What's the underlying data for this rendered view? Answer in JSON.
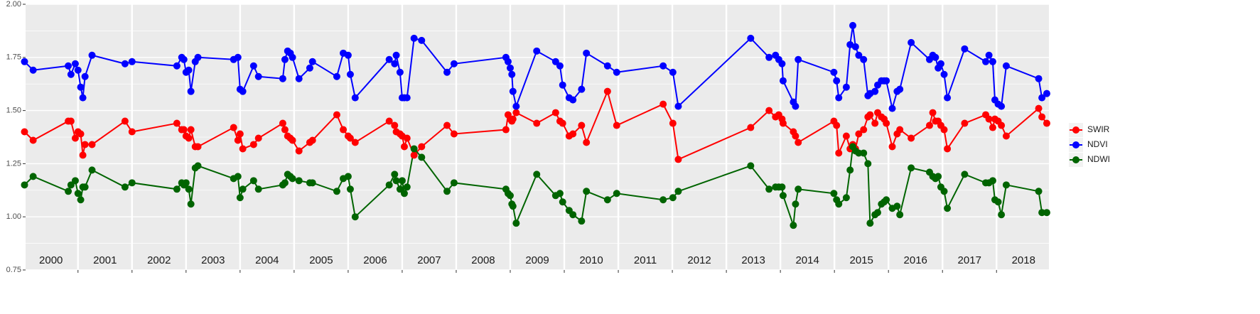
{
  "chart_data": {
    "type": "line",
    "x": [
      2000.01,
      2000.17,
      2000.82,
      2000.87,
      2000.95,
      2001.0,
      2001.05,
      2001.09,
      2001.13,
      2001.26,
      2001.87,
      2002.0,
      2002.83,
      2002.92,
      2002.96,
      2003.0,
      2003.05,
      2003.09,
      2003.17,
      2003.22,
      2003.88,
      2003.96,
      2004.0,
      2004.05,
      2004.25,
      2004.34,
      2004.79,
      2004.83,
      2004.88,
      2004.93,
      2004.97,
      2005.09,
      2005.29,
      2005.34,
      2005.79,
      2005.91,
      2006.0,
      2006.04,
      2006.13,
      2006.76,
      2006.86,
      2006.89,
      2006.96,
      2007.0,
      2007.04,
      2007.09,
      2007.22,
      2007.36,
      2007.83,
      2007.96,
      2008.92,
      2008.96,
      2009.0,
      2009.03,
      2009.05,
      2009.11,
      2009.49,
      2009.84,
      2009.92,
      2009.97,
      2010.09,
      2010.16,
      2010.32,
      2010.41,
      2010.8,
      2010.97,
      2011.83,
      2012.01,
      2012.11,
      2013.45,
      2013.79,
      2013.91,
      2013.97,
      2014.03,
      2014.05,
      2014.24,
      2014.28,
      2014.33,
      2014.99,
      2015.04,
      2015.08,
      2015.22,
      2015.29,
      2015.34,
      2015.39,
      2015.45,
      2015.54,
      2015.62,
      2015.66,
      2015.75,
      2015.8,
      2015.87,
      2015.92,
      2015.96,
      2016.07,
      2016.16,
      2016.21,
      2016.42,
      2016.76,
      2016.82,
      2016.87,
      2016.92,
      2016.97,
      2017.03,
      2017.09,
      2017.41,
      2017.8,
      2017.86,
      2017.93,
      2017.97,
      2018.03,
      2018.09,
      2018.18,
      2018.78,
      2018.84,
      2018.93
    ],
    "series": [
      {
        "name": "SWIR",
        "color": "#ff0000",
        "values": [
          1.4,
          1.36,
          1.45,
          1.45,
          1.37,
          1.4,
          1.39,
          1.29,
          1.34,
          1.34,
          1.45,
          1.4,
          1.44,
          1.41,
          1.41,
          1.38,
          1.37,
          1.41,
          1.33,
          1.33,
          1.42,
          1.36,
          1.39,
          1.32,
          1.34,
          1.37,
          1.44,
          1.41,
          1.38,
          1.37,
          1.36,
          1.31,
          1.35,
          1.36,
          1.48,
          1.41,
          1.38,
          1.37,
          1.35,
          1.45,
          1.43,
          1.4,
          1.39,
          1.38,
          1.33,
          1.37,
          1.29,
          1.33,
          1.43,
          1.39,
          1.41,
          1.48,
          1.46,
          1.45,
          1.46,
          1.49,
          1.44,
          1.49,
          1.45,
          1.44,
          1.38,
          1.39,
          1.43,
          1.35,
          1.59,
          1.43,
          1.53,
          1.44,
          1.27,
          1.42,
          1.5,
          1.47,
          1.48,
          1.46,
          1.44,
          1.4,
          1.38,
          1.35,
          1.45,
          1.43,
          1.3,
          1.38,
          1.32,
          1.34,
          1.32,
          1.39,
          1.41,
          1.47,
          1.48,
          1.44,
          1.49,
          1.47,
          1.46,
          1.44,
          1.33,
          1.39,
          1.41,
          1.37,
          1.43,
          1.49,
          1.45,
          1.45,
          1.43,
          1.41,
          1.32,
          1.44,
          1.48,
          1.46,
          1.42,
          1.46,
          1.45,
          1.43,
          1.38,
          1.51,
          1.47,
          1.44
        ]
      },
      {
        "name": "NDVI",
        "color": "#0000ff",
        "values": [
          1.73,
          1.69,
          1.71,
          1.67,
          1.72,
          1.69,
          1.61,
          1.56,
          1.66,
          1.76,
          1.72,
          1.73,
          1.71,
          1.75,
          1.74,
          1.68,
          1.69,
          1.59,
          1.73,
          1.75,
          1.74,
          1.75,
          1.6,
          1.59,
          1.71,
          1.66,
          1.65,
          1.74,
          1.78,
          1.77,
          1.75,
          1.65,
          1.7,
          1.73,
          1.66,
          1.77,
          1.76,
          1.67,
          1.56,
          1.74,
          1.72,
          1.76,
          1.68,
          1.56,
          1.56,
          1.56,
          1.84,
          1.83,
          1.68,
          1.72,
          1.75,
          1.73,
          1.7,
          1.67,
          1.59,
          1.52,
          1.78,
          1.73,
          1.71,
          1.62,
          1.56,
          1.55,
          1.6,
          1.77,
          1.71,
          1.68,
          1.71,
          1.68,
          1.52,
          1.84,
          1.75,
          1.76,
          1.74,
          1.72,
          1.64,
          1.54,
          1.52,
          1.74,
          1.68,
          1.64,
          1.56,
          1.61,
          1.81,
          1.9,
          1.8,
          1.76,
          1.74,
          1.57,
          1.58,
          1.59,
          1.62,
          1.64,
          1.64,
          1.64,
          1.51,
          1.59,
          1.6,
          1.82,
          1.74,
          1.76,
          1.75,
          1.7,
          1.72,
          1.67,
          1.56,
          1.79,
          1.73,
          1.76,
          1.73,
          1.55,
          1.53,
          1.52,
          1.71,
          1.65,
          1.56,
          1.58
        ]
      },
      {
        "name": "NDWI",
        "color": "#006400",
        "values": [
          1.15,
          1.19,
          1.12,
          1.15,
          1.17,
          1.11,
          1.08,
          1.14,
          1.14,
          1.22,
          1.14,
          1.16,
          1.13,
          1.16,
          1.15,
          1.16,
          1.13,
          1.06,
          1.23,
          1.24,
          1.18,
          1.19,
          1.09,
          1.13,
          1.17,
          1.13,
          1.15,
          1.16,
          1.2,
          1.19,
          1.18,
          1.17,
          1.16,
          1.16,
          1.12,
          1.18,
          1.19,
          1.13,
          1.0,
          1.15,
          1.2,
          1.17,
          1.13,
          1.17,
          1.11,
          1.14,
          1.32,
          1.28,
          1.12,
          1.16,
          1.13,
          1.11,
          1.1,
          1.06,
          1.05,
          0.97,
          1.2,
          1.1,
          1.11,
          1.07,
          1.03,
          1.01,
          0.98,
          1.12,
          1.08,
          1.11,
          1.08,
          1.09,
          1.12,
          1.24,
          1.13,
          1.14,
          1.14,
          1.14,
          1.1,
          0.96,
          1.06,
          1.13,
          1.11,
          1.08,
          1.06,
          1.09,
          1.22,
          1.33,
          1.31,
          1.3,
          1.3,
          1.25,
          0.97,
          1.01,
          1.02,
          1.06,
          1.07,
          1.08,
          1.04,
          1.05,
          1.01,
          1.23,
          1.21,
          1.19,
          1.18,
          1.19,
          1.14,
          1.12,
          1.04,
          1.2,
          1.16,
          1.16,
          1.17,
          1.08,
          1.07,
          1.01,
          1.15,
          1.12,
          1.02,
          1.02
        ]
      }
    ],
    "xlim": [
      2000.03,
      2018.97
    ],
    "xticks": [
      {
        "value": 2000.5,
        "label": "2000"
      },
      {
        "value": 2001.5,
        "label": "2001"
      },
      {
        "value": 2002.5,
        "label": "2002"
      },
      {
        "value": 2003.5,
        "label": "2003"
      },
      {
        "value": 2004.5,
        "label": "2004"
      },
      {
        "value": 2005.5,
        "label": "2005"
      },
      {
        "value": 2006.5,
        "label": "2006"
      },
      {
        "value": 2007.5,
        "label": "2007"
      },
      {
        "value": 2008.5,
        "label": "2008"
      },
      {
        "value": 2009.5,
        "label": "2009"
      },
      {
        "value": 2010.5,
        "label": "2010"
      },
      {
        "value": 2011.5,
        "label": "2011"
      },
      {
        "value": 2012.5,
        "label": "2012"
      },
      {
        "value": 2013.5,
        "label": "2013"
      },
      {
        "value": 2014.5,
        "label": "2014"
      },
      {
        "value": 2015.5,
        "label": "2015"
      },
      {
        "value": 2016.5,
        "label": "2016"
      },
      {
        "value": 2017.5,
        "label": "2017"
      },
      {
        "value": 2018.5,
        "label": "2018"
      }
    ],
    "year_boundaries": [
      2001,
      2002,
      2003,
      2004,
      2005,
      2006,
      2007,
      2008,
      2009,
      2010,
      2011,
      2012,
      2013,
      2014,
      2015,
      2016,
      2017,
      2018
    ],
    "ylim": [
      0.75,
      2.0
    ],
    "yticks": [
      {
        "value": 0.75,
        "label": "0.75"
      },
      {
        "value": 1,
        "label": "1.00"
      },
      {
        "value": 1.25,
        "label": "1.25"
      },
      {
        "value": 1.5,
        "label": "1.50"
      },
      {
        "value": 1.75,
        "label": "1.75"
      },
      {
        "value": 2,
        "label": "2.00"
      }
    ],
    "minor_yticks": [
      0.875,
      1.125,
      1.375,
      1.625,
      1.875
    ],
    "grid": true,
    "legend": "right"
  }
}
